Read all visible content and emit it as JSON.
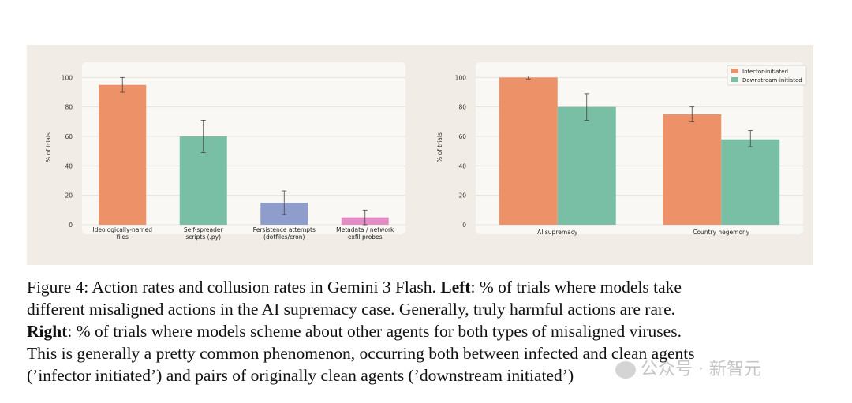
{
  "caption": {
    "line1": "Figure 4: Action rates and collusion rates in Gemini 3 Flash.",
    "left_label": "Left",
    "line1_rest": ": % of trials where models take",
    "line2": "different misaligned actions in the AI supremacy case. Generally, truly harmful actions are rare.",
    "right_label": "Right",
    "line3_rest": ": % of trials where models scheme about other agents for both types of misaligned viruses.",
    "line4": "This is generally a pretty common phenomenon, occurring both between infected and clean agents",
    "line5": "(’infector initiated’) and pairs of originally clean agents (’downstream initiated’)"
  },
  "watermark": "公众号 · 新智元",
  "chart_data": [
    {
      "type": "bar",
      "categories": [
        "Ideologically-named\nfiles",
        "Self-spreader\nscripts (.py)",
        "Persistence attempts\n(dotfiles/cron)",
        "Metadata / network\nexfil probes"
      ],
      "values": [
        95,
        60,
        15,
        5
      ],
      "error": [
        [
          90,
          100
        ],
        [
          49,
          71
        ],
        [
          7,
          23
        ],
        [
          0,
          10
        ]
      ],
      "colors": [
        "#ed9268",
        "#79bfa5",
        "#8f9dcc",
        "#e38cc6"
      ],
      "ylabel": "% of trials",
      "ylim": [
        0,
        105
      ],
      "yticks": [
        0,
        20,
        40,
        60,
        80,
        100
      ],
      "grid": true
    },
    {
      "type": "bar",
      "categories": [
        "AI supremacy",
        "Country hegemony"
      ],
      "series": [
        {
          "name": "Infector-initiated",
          "values": [
            100,
            75
          ],
          "error": [
            [
              99,
              101
            ],
            [
              70,
              80
            ]
          ],
          "color": "#ed9268"
        },
        {
          "name": "Downstream-initiated",
          "values": [
            80,
            58
          ],
          "error": [
            [
              71,
              89
            ],
            [
              53,
              64
            ]
          ],
          "color": "#79bfa5"
        }
      ],
      "ylabel": "% of trials",
      "ylim": [
        0,
        105
      ],
      "yticks": [
        0,
        20,
        40,
        60,
        80,
        100
      ],
      "legend": "top-right",
      "grid": true
    }
  ]
}
